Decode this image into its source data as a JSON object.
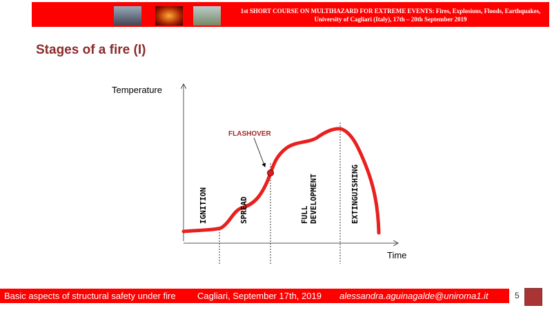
{
  "header": {
    "line1": "1st SHORT COURSE ON MULTIHAZARD FOR EXTREME EVENTS: Fires, Explosions, Floods, Earthquakes,",
    "line2": "University of Cagliari (Italy), 17th – 20th September 2019"
  },
  "title": "Stages of a fire (I)",
  "diagram": {
    "y_label": "Temperature",
    "x_label": "Time",
    "flashover": "FLASHOVER",
    "stages": [
      "IGNITION",
      "SPREAD",
      "FULL",
      "DEVELOPMENT",
      "EXTINGUISHING"
    ],
    "curve_color": "#e8201e"
  },
  "footer": {
    "course": "Basic aspects of structural safety under fire",
    "place_date": "Cagliari, September 17th, 2019",
    "email": "alessandra.aguinagalde@uniroma1.it",
    "page": "5"
  }
}
